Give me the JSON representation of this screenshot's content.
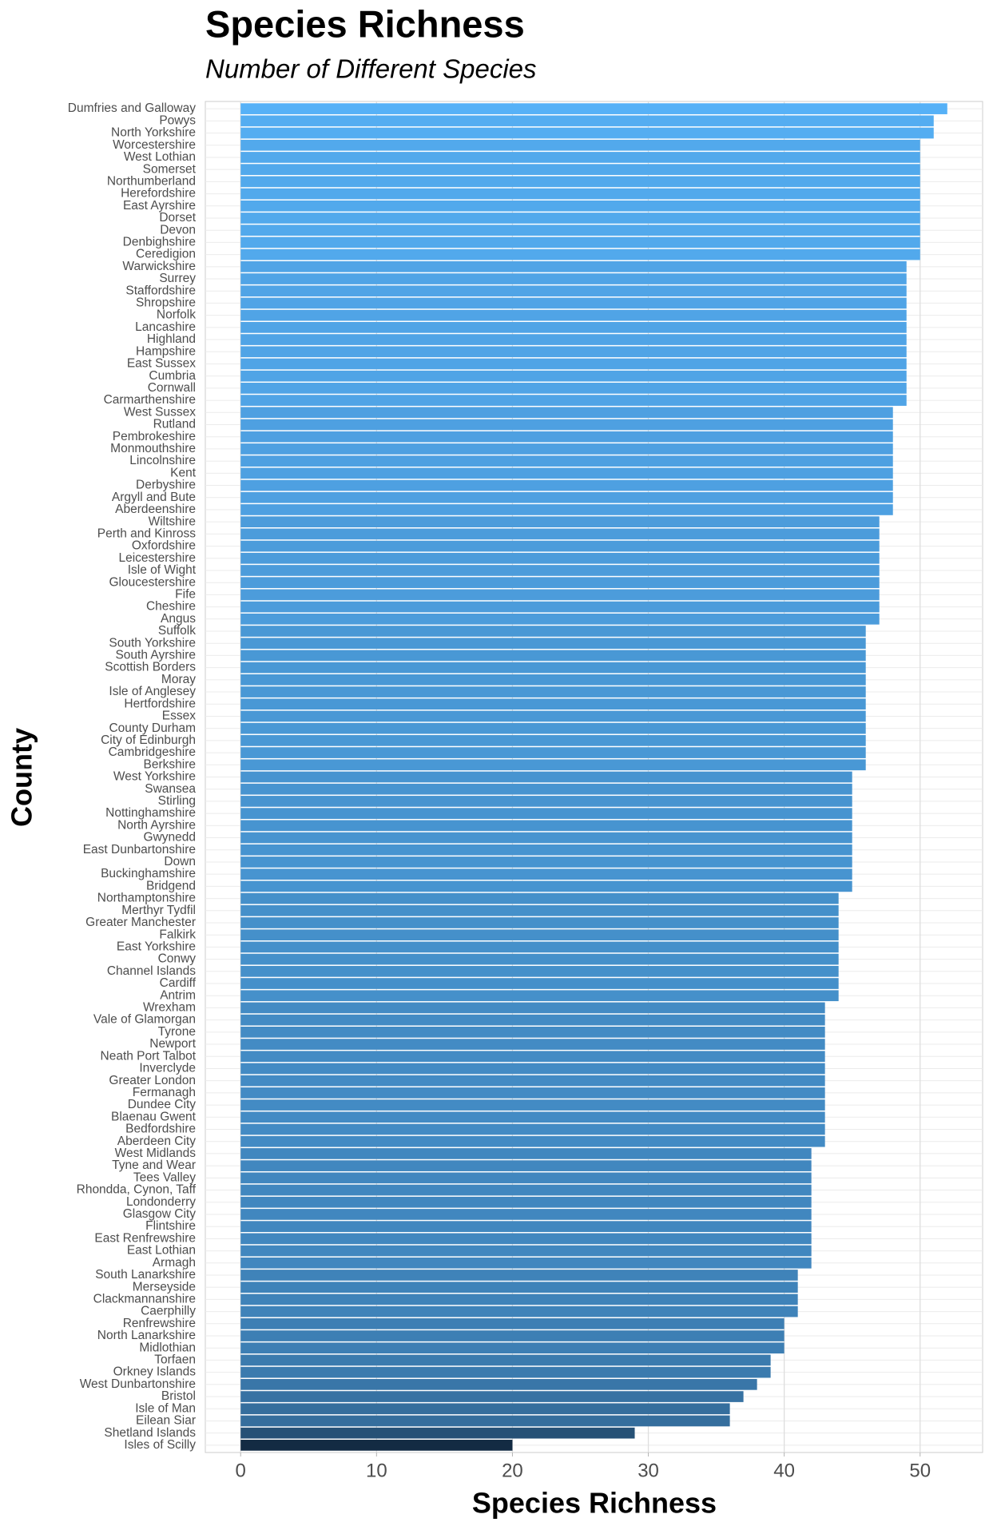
{
  "chart_data": {
    "type": "bar",
    "horizontal": true,
    "title": "Species Richness",
    "subtitle": "Number of Different Species",
    "x_label": "Species Richness",
    "y_label": "County",
    "categories": [
      "Dumfries and Galloway",
      "Powys",
      "North Yorkshire",
      "Worcestershire",
      "West Lothian",
      "Somerset",
      "Northumberland",
      "Herefordshire",
      "East Ayrshire",
      "Dorset",
      "Devon",
      "Denbighshire",
      "Ceredigion",
      "Warwickshire",
      "Surrey",
      "Staffordshire",
      "Shropshire",
      "Norfolk",
      "Lancashire",
      "Highland",
      "Hampshire",
      "East Sussex",
      "Cumbria",
      "Cornwall",
      "Carmarthenshire",
      "West Sussex",
      "Rutland",
      "Pembrokeshire",
      "Monmouthshire",
      "Lincolnshire",
      "Kent",
      "Derbyshire",
      "Argyll and Bute",
      "Aberdeenshire",
      "Wiltshire",
      "Perth and Kinross",
      "Oxfordshire",
      "Leicestershire",
      "Isle of Wight",
      "Gloucestershire",
      "Fife",
      "Cheshire",
      "Angus",
      "Suffolk",
      "South Yorkshire",
      "South Ayrshire",
      "Scottish Borders",
      "Moray",
      "Isle of Anglesey",
      "Hertfordshire",
      "Essex",
      "County Durham",
      "City of Edinburgh",
      "Cambridgeshire",
      "Berkshire",
      "West Yorkshire",
      "Swansea",
      "Stirling",
      "Nottinghamshire",
      "North Ayrshire",
      "Gwynedd",
      "East Dunbartonshire",
      "Down",
      "Buckinghamshire",
      "Bridgend",
      "Northamptonshire",
      "Merthyr Tydfil",
      "Greater Manchester",
      "Falkirk",
      "East Yorkshire",
      "Conwy",
      "Channel Islands",
      "Cardiff",
      "Antrim",
      "Wrexham",
      "Vale of Glamorgan",
      "Tyrone",
      "Newport",
      "Neath Port Talbot",
      "Inverclyde",
      "Greater London",
      "Fermanagh",
      "Dundee City",
      "Blaenau Gwent",
      "Bedfordshire",
      "Aberdeen City",
      "West Midlands",
      "Tyne and Wear",
      "Tees Valley",
      "Rhondda, Cynon, Taff",
      "Londonderry",
      "Glasgow City",
      "Flintshire",
      "East Renfrewshire",
      "East Lothian",
      "Armagh",
      "South Lanarkshire",
      "Merseyside",
      "Clackmannanshire",
      "Caerphilly",
      "Renfrewshire",
      "North Lanarkshire",
      "Midlothian",
      "Torfaen",
      "Orkney Islands",
      "West Dunbartonshire",
      "Bristol",
      "Isle of Man",
      "Eilean Siar",
      "Shetland Islands",
      "Isles of Scilly"
    ],
    "values": [
      52,
      51,
      51,
      50,
      50,
      50,
      50,
      50,
      50,
      50,
      50,
      50,
      50,
      49,
      49,
      49,
      49,
      49,
      49,
      49,
      49,
      49,
      49,
      49,
      49,
      48,
      48,
      48,
      48,
      48,
      48,
      48,
      48,
      48,
      47,
      47,
      47,
      47,
      47,
      47,
      47,
      47,
      47,
      46,
      46,
      46,
      46,
      46,
      46,
      46,
      46,
      46,
      46,
      46,
      46,
      45,
      45,
      45,
      45,
      45,
      45,
      45,
      45,
      45,
      45,
      44,
      44,
      44,
      44,
      44,
      44,
      44,
      44,
      44,
      43,
      43,
      43,
      43,
      43,
      43,
      43,
      43,
      43,
      43,
      43,
      43,
      42,
      42,
      42,
      42,
      42,
      42,
      42,
      42,
      42,
      42,
      41,
      41,
      41,
      41,
      40,
      40,
      40,
      39,
      39,
      38,
      37,
      36,
      36,
      29,
      20
    ],
    "color_scale": {
      "low": "#132B43",
      "high": "#56B1F7"
    },
    "xlim": [
      -2.6,
      54.6
    ],
    "xticks": [
      0,
      10,
      20,
      30,
      40,
      50
    ],
    "grid": true
  }
}
